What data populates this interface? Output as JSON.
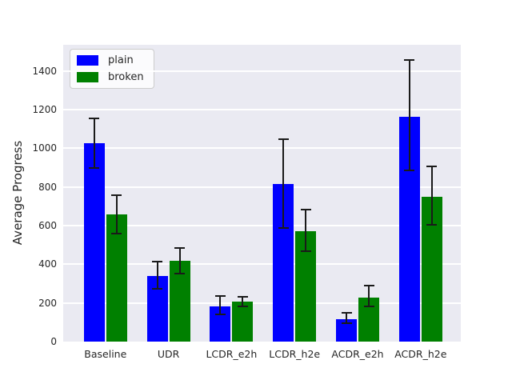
{
  "figure": {
    "background": "#ffffff",
    "plot_background": "#eaeaf2",
    "grid_color": "#ffffff",
    "text_color": "#262626",
    "errorbar_color": "#1a1a1a"
  },
  "legend": {
    "items": [
      {
        "label": "plain",
        "color": "#0000ff"
      },
      {
        "label": "broken",
        "color": "#008000"
      }
    ]
  },
  "chart_data": {
    "type": "bar",
    "title": "",
    "xlabel": "",
    "ylabel": "Average Progress",
    "categories": [
      "Baseline",
      "UDR",
      "LCDR_e2h",
      "LCDR_h2e",
      "ACDR_e2h",
      "ACDR_h2e"
    ],
    "series": [
      {
        "name": "plain",
        "color": "#0000ff",
        "values": [
          1025,
          340,
          182,
          816,
          117,
          1163
        ],
        "err_low": [
          898,
          274,
          141,
          589,
          96,
          885
        ],
        "err_high": [
          1153,
          412,
          234,
          1046,
          150,
          1455
        ]
      },
      {
        "name": "broken",
        "color": "#008000",
        "values": [
          657,
          417,
          207,
          573,
          227,
          750
        ],
        "err_low": [
          557,
          352,
          184,
          468,
          181,
          604
        ],
        "err_high": [
          757,
          486,
          231,
          682,
          288,
          906
        ]
      }
    ],
    "ylim": [
      0,
      1535
    ],
    "yticks": [
      0,
      200,
      400,
      600,
      800,
      1000,
      1200,
      1400
    ],
    "grid": true,
    "legend_position": "upper left"
  }
}
